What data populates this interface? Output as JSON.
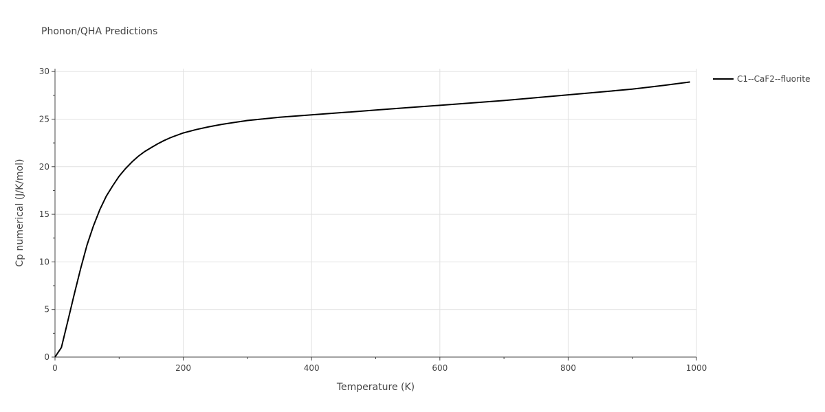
{
  "chart_data": {
    "type": "line",
    "title": "Phonon/QHA Predictions",
    "xlabel": "Temperature (K)",
    "ylabel": "Cp numerical (J/K/mol)",
    "xlim": [
      0,
      1000
    ],
    "ylim": [
      0,
      30.3
    ],
    "xticks": [
      0,
      200,
      400,
      600,
      800,
      1000
    ],
    "xtick_labels": [
      "0",
      "200",
      "400",
      "600",
      "800",
      "1000"
    ],
    "yticks": [
      0,
      5,
      10,
      15,
      20,
      25,
      30
    ],
    "ytick_labels": [
      "0",
      "5",
      "10",
      "15",
      "20",
      "25",
      "30"
    ],
    "grid": true,
    "legend_position": "top-right outside",
    "series": [
      {
        "name": "C1--CaF2--fluorite",
        "color": "#000000",
        "x": [
          0,
          10,
          20,
          30,
          40,
          50,
          60,
          70,
          80,
          90,
          100,
          110,
          120,
          130,
          140,
          150,
          160,
          170,
          180,
          190,
          200,
          220,
          240,
          260,
          280,
          300,
          350,
          400,
          450,
          500,
          550,
          600,
          650,
          700,
          750,
          800,
          850,
          900,
          950,
          990
        ],
        "y": [
          0,
          1.0,
          3.8,
          6.6,
          9.3,
          11.8,
          13.8,
          15.5,
          16.9,
          18.0,
          19.0,
          19.8,
          20.5,
          21.1,
          21.6,
          22.0,
          22.4,
          22.75,
          23.05,
          23.3,
          23.55,
          23.9,
          24.2,
          24.45,
          24.65,
          24.85,
          25.2,
          25.45,
          25.7,
          25.95,
          26.2,
          26.45,
          26.7,
          26.95,
          27.25,
          27.55,
          27.85,
          28.15,
          28.55,
          28.9
        ]
      }
    ]
  }
}
